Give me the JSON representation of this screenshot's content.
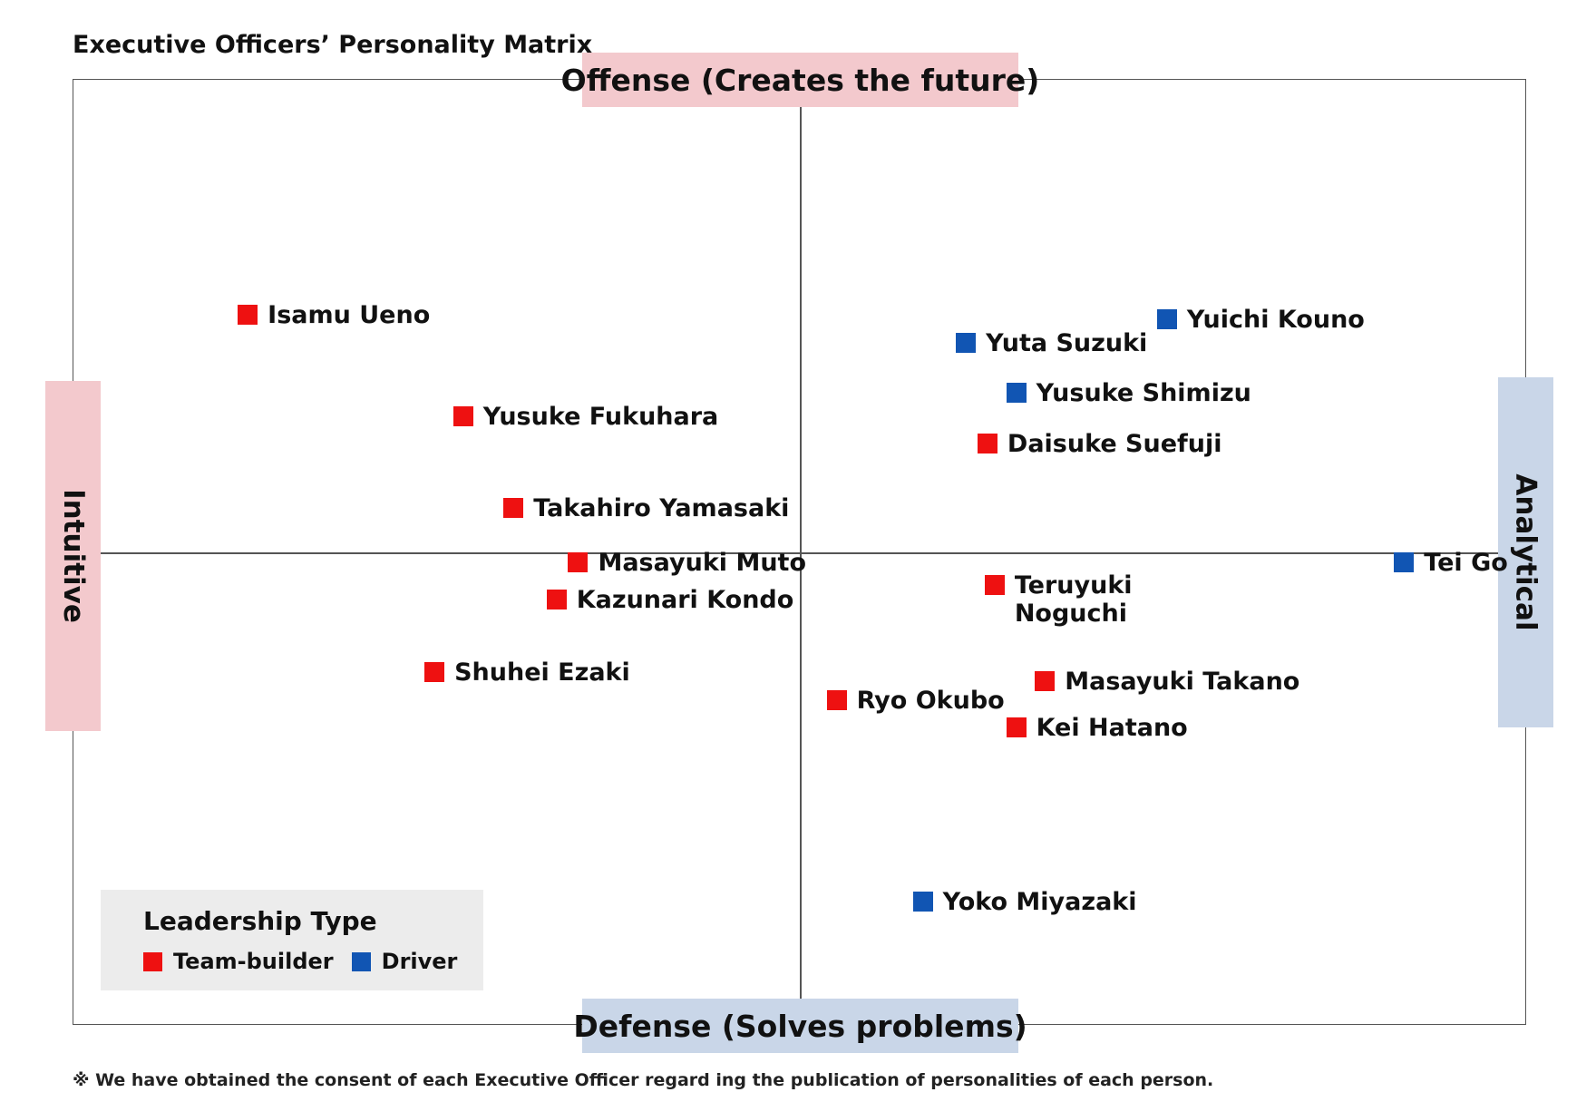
{
  "title": "Executive Officers’ Personality Matrix",
  "axes": {
    "top": "Offense (Creates the future)",
    "bottom": "Defense (Solves problems)",
    "left": "Intuitive",
    "right": "Analytical"
  },
  "colors": {
    "team_builder": "#ee1111",
    "driver": "#1155b3",
    "offense_intuitive_bg": "#f3c9cd",
    "defense_analytical_bg": "#c9d6e8",
    "legend_bg": "#ececec"
  },
  "legend": {
    "title": "Leadership Type",
    "items": [
      {
        "label": "Team-builder",
        "type": "team_builder"
      },
      {
        "label": "Driver",
        "type": "driver"
      }
    ]
  },
  "chart_data": {
    "type": "scatter",
    "title": "Executive Officers’ Personality Matrix",
    "x_axis": {
      "negative": "Intuitive",
      "positive": "Analytical"
    },
    "y_axis": {
      "negative": "Defense (Solves problems)",
      "positive": "Offense (Creates the future)"
    },
    "xlim": [
      -1,
      1
    ],
    "ylim": [
      -1,
      1
    ],
    "grid": false,
    "legend_position": "bottom-left",
    "series": [
      {
        "name": "Team-builder",
        "type": "team_builder"
      },
      {
        "name": "Driver",
        "type": "driver"
      }
    ],
    "points": [
      {
        "name": "Isamu Ueno",
        "type": "team_builder",
        "x": -0.77,
        "y": 0.52
      },
      {
        "name": "Yusuke Fukuhara",
        "type": "team_builder",
        "x": -0.47,
        "y": 0.3
      },
      {
        "name": "Takahiro Yamasaki",
        "type": "team_builder",
        "x": -0.4,
        "y": 0.1
      },
      {
        "name": "Masayuki Muto",
        "type": "team_builder",
        "x": -0.31,
        "y": -0.02
      },
      {
        "name": "Kazunari Kondo",
        "type": "team_builder",
        "x": -0.34,
        "y": -0.1
      },
      {
        "name": "Shuhei Ezaki",
        "type": "team_builder",
        "x": -0.51,
        "y": -0.26
      },
      {
        "name": "Yuta Suzuki",
        "type": "driver",
        "x": 0.23,
        "y": 0.46
      },
      {
        "name": "Yuichi Kouno",
        "type": "driver",
        "x": 0.51,
        "y": 0.51
      },
      {
        "name": "Yusuke Shimizu",
        "type": "driver",
        "x": 0.3,
        "y": 0.35
      },
      {
        "name": "Daisuke Suefuji",
        "type": "team_builder",
        "x": 0.26,
        "y": 0.24
      },
      {
        "name": "Tei Go",
        "type": "driver",
        "x": 0.84,
        "y": -0.02
      },
      {
        "name": "Teruyuki\nNoguchi",
        "type": "team_builder",
        "x": 0.27,
        "y": -0.07
      },
      {
        "name": "Masayuki Takano",
        "type": "team_builder",
        "x": 0.34,
        "y": -0.28
      },
      {
        "name": "Ryo Okubo",
        "type": "team_builder",
        "x": 0.05,
        "y": -0.32
      },
      {
        "name": "Kei Hatano",
        "type": "team_builder",
        "x": 0.3,
        "y": -0.38
      },
      {
        "name": "Yoko Miyazaki",
        "type": "driver",
        "x": 0.17,
        "y": -0.76
      }
    ]
  },
  "footnote": "※ We have obtained the consent of each Executive Officer regard ing the publication of personalities of each person."
}
